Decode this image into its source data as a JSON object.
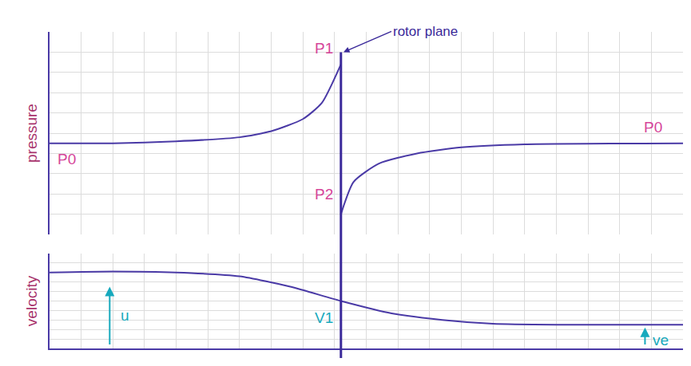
{
  "chart_data": [
    {
      "type": "line",
      "ylabel": "pressure",
      "xlim": [
        0,
        100
      ],
      "xticks": [
        0,
        5,
        10,
        15,
        20,
        25,
        30,
        35,
        40,
        45,
        50,
        55,
        60,
        65,
        70,
        75,
        80,
        85,
        90,
        95,
        100
      ],
      "ylim": [
        0,
        10
      ],
      "yticks": [
        0,
        1,
        2,
        3,
        4,
        5,
        6,
        7,
        8,
        9,
        10
      ],
      "grid": true,
      "tick_labels": false,
      "series": [
        {
          "color": "#4a3aa6",
          "x": [
            0,
            10,
            20,
            30,
            35,
            40,
            43,
            46,
            46,
            46,
            48,
            52,
            58,
            65,
            75,
            100
          ],
          "values": [
            4.5,
            4.5,
            4.6,
            4.8,
            5.1,
            5.7,
            6.5,
            8.4,
            null,
            1.0,
            2.6,
            3.5,
            4.0,
            4.3,
            4.45,
            4.5
          ]
        }
      ],
      "labels": [
        {
          "text": "P1",
          "value": 8.4
        },
        {
          "text": "P2",
          "value": 1.0
        },
        {
          "text": "P0",
          "value": 4.5
        },
        {
          "text": "P0",
          "value": 4.5
        }
      ]
    },
    {
      "type": "line",
      "ylabel": "velocity",
      "xlim": [
        0,
        100
      ],
      "xticks": [
        0,
        5,
        10,
        15,
        20,
        25,
        30,
        35,
        40,
        45,
        50,
        55,
        60,
        65,
        70,
        75,
        80,
        85,
        90,
        95,
        100
      ],
      "ylim": [
        0,
        10
      ],
      "yticks": [
        0,
        1,
        2,
        3,
        4,
        5,
        6,
        7,
        8,
        9,
        10
      ],
      "grid": true,
      "tick_labels": false,
      "series": [
        {
          "color": "#4a3aa6",
          "x": [
            0,
            10,
            20,
            30,
            38,
            46,
            54,
            62,
            70,
            80,
            100
          ],
          "values": [
            8.0,
            8.1,
            8.0,
            7.6,
            6.5,
            5.0,
            3.7,
            3.0,
            2.6,
            2.5,
            2.5
          ]
        }
      ],
      "labels": [
        {
          "text": "u",
          "value": 8.0
        },
        {
          "text": "V1",
          "value": 5.0
        },
        {
          "text": "ve",
          "value": 2.5
        }
      ]
    }
  ],
  "rotor_plane": {
    "x": 46,
    "label": "rotor plane"
  }
}
